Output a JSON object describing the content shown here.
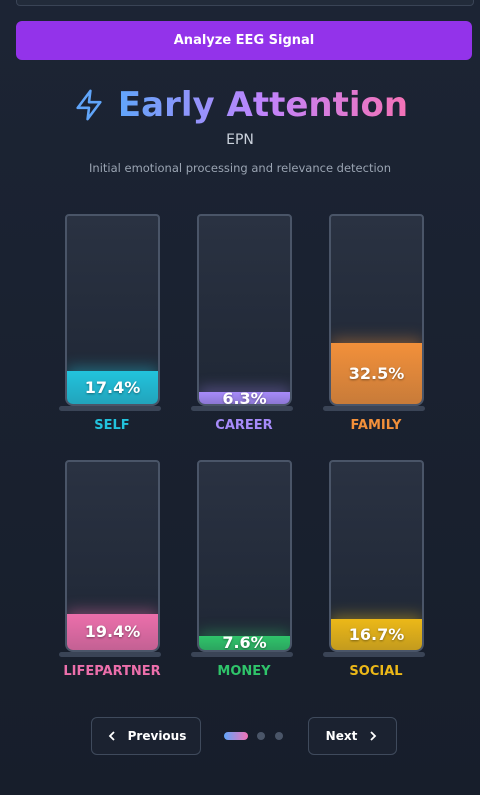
{
  "button": "Analyze EEG Signal",
  "header": {
    "title": "Early Attention",
    "subtitle": "EPN",
    "description": "Initial emotional processing and relevance detection"
  },
  "tubes": {
    "items": [
      {
        "name": "SELF",
        "color": "#22c3dd",
        "value": 17.4,
        "value_label": "17.4%"
      },
      {
        "name": "CAREER",
        "color": "#a78bfa",
        "value": 6.3,
        "value_label": "6.3%"
      },
      {
        "name": "FAMILY",
        "color": "#f2903a",
        "value": 32.5,
        "value_label": "32.5%"
      },
      {
        "name": "LIFEPARTNER",
        "color": "#ec6fab",
        "value": 19.4,
        "value_label": "19.4%"
      },
      {
        "name": "MONEY",
        "color": "#2fc46a",
        "value": 7.6,
        "value_label": "7.6%"
      },
      {
        "name": "SOCIAL",
        "color": "#ecb818",
        "value": 16.7,
        "value_label": "16.7%"
      }
    ]
  },
  "nav": {
    "previous": "Previous",
    "next": "Next"
  }
}
